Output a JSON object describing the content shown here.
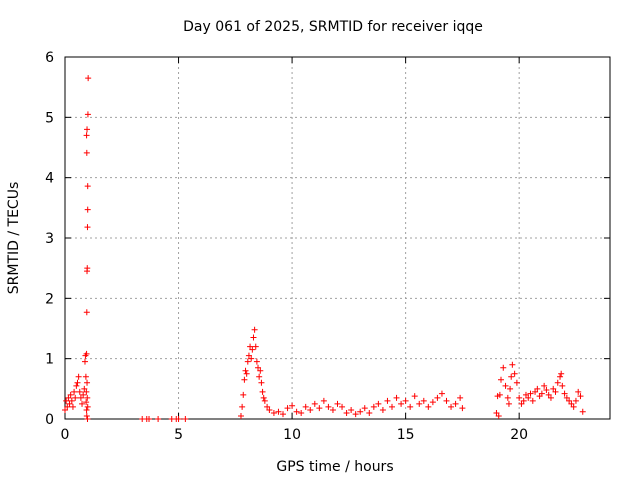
{
  "chart_data": {
    "type": "scatter",
    "title": "Day 061 of 2025, SRMTID for receiver iqqe",
    "xlabel": "GPS time / hours",
    "ylabel": "SRMTID / TECUs",
    "xlim": [
      0,
      24
    ],
    "ylim": [
      0,
      6
    ],
    "xticks": [
      0,
      5,
      10,
      15,
      20
    ],
    "yticks": [
      0,
      1,
      2,
      3,
      4,
      5,
      6
    ],
    "grid": true,
    "marker": "+",
    "color": "#ff0000",
    "series": [
      {
        "name": "SRMTID",
        "x": [
          0.0,
          0.05,
          0.1,
          0.15,
          0.2,
          0.25,
          0.3,
          0.35,
          0.4,
          0.45,
          0.5,
          0.55,
          0.6,
          0.65,
          0.7,
          0.75,
          0.8,
          0.85,
          0.88,
          0.9,
          0.92,
          0.94,
          0.95,
          0.96,
          0.97,
          0.98,
          0.99,
          1.0,
          1.0,
          0.96,
          0.95,
          0.97,
          1.01,
          1.02,
          0.97,
          0.98,
          1.0,
          0.96,
          0.99,
          0.93,
          0.95,
          3.4,
          3.6,
          3.7,
          4.1,
          4.7,
          4.9,
          5.0,
          5.3,
          7.75,
          7.8,
          7.85,
          7.9,
          7.95,
          8.0,
          8.05,
          8.1,
          8.15,
          8.2,
          8.25,
          8.3,
          8.35,
          8.4,
          8.45,
          8.5,
          8.55,
          8.6,
          8.65,
          8.7,
          8.75,
          8.8,
          8.9,
          9.0,
          9.2,
          9.4,
          9.6,
          9.8,
          10.0,
          10.2,
          10.4,
          10.6,
          10.8,
          11.0,
          11.2,
          11.4,
          11.6,
          11.8,
          12.0,
          12.2,
          12.4,
          12.6,
          12.8,
          13.0,
          13.2,
          13.4,
          13.6,
          13.8,
          14.0,
          14.2,
          14.4,
          14.6,
          14.8,
          15.0,
          15.2,
          15.4,
          15.6,
          15.8,
          16.0,
          16.2,
          16.4,
          16.6,
          16.8,
          17.0,
          17.2,
          17.4,
          17.5,
          19.0,
          19.05,
          19.1,
          19.15,
          19.2,
          19.3,
          19.4,
          19.5,
          19.55,
          19.6,
          19.65,
          19.7,
          19.8,
          19.9,
          20.0,
          20.1,
          20.2,
          20.3,
          20.4,
          20.5,
          20.6,
          20.7,
          20.8,
          20.9,
          21.0,
          21.1,
          21.2,
          21.3,
          21.4,
          21.5,
          21.6,
          21.7,
          21.8,
          21.85,
          21.9,
          22.0,
          22.1,
          22.2,
          22.3,
          22.4,
          22.5,
          22.6,
          22.7,
          22.8
        ],
        "y": [
          0.15,
          0.3,
          0.2,
          0.35,
          0.25,
          0.4,
          0.3,
          0.2,
          0.45,
          0.35,
          0.55,
          0.6,
          0.7,
          0.45,
          0.35,
          0.25,
          0.4,
          0.5,
          0.95,
          1.05,
          0.7,
          0.45,
          1.08,
          1.77,
          2.45,
          2.5,
          3.18,
          3.47,
          3.86,
          4.41,
          4.7,
          4.8,
          5.05,
          5.65,
          0.6,
          0.35,
          0.2,
          0.05,
          0.0,
          0.28,
          0.15,
          0.0,
          0.0,
          0.0,
          0.0,
          0.0,
          0.0,
          0.0,
          0.0,
          0.05,
          0.2,
          0.4,
          0.65,
          0.8,
          0.75,
          0.95,
          1.05,
          1.2,
          1.0,
          1.15,
          1.35,
          1.48,
          1.2,
          0.95,
          0.85,
          0.7,
          0.8,
          0.6,
          0.45,
          0.35,
          0.3,
          0.2,
          0.15,
          0.1,
          0.12,
          0.08,
          0.18,
          0.22,
          0.12,
          0.1,
          0.2,
          0.15,
          0.25,
          0.18,
          0.3,
          0.2,
          0.15,
          0.25,
          0.2,
          0.1,
          0.15,
          0.08,
          0.12,
          0.18,
          0.1,
          0.2,
          0.25,
          0.15,
          0.3,
          0.2,
          0.35,
          0.25,
          0.3,
          0.2,
          0.38,
          0.25,
          0.3,
          0.2,
          0.28,
          0.35,
          0.42,
          0.3,
          0.2,
          0.25,
          0.35,
          0.18,
          0.1,
          0.38,
          0.05,
          0.4,
          0.65,
          0.85,
          0.55,
          0.35,
          0.25,
          0.5,
          0.7,
          0.9,
          0.75,
          0.6,
          0.35,
          0.25,
          0.3,
          0.4,
          0.35,
          0.42,
          0.3,
          0.45,
          0.5,
          0.38,
          0.42,
          0.55,
          0.48,
          0.4,
          0.35,
          0.5,
          0.45,
          0.6,
          0.7,
          0.75,
          0.55,
          0.42,
          0.35,
          0.3,
          0.25,
          0.2,
          0.3,
          0.45,
          0.38,
          0.12
        ]
      }
    ]
  }
}
